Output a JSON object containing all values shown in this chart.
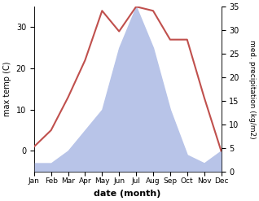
{
  "months": [
    "Jan",
    "Feb",
    "Mar",
    "Apr",
    "May",
    "Jun",
    "Jul",
    "Aug",
    "Sep",
    "Oct",
    "Nov",
    "Dec"
  ],
  "month_indices": [
    1,
    2,
    3,
    4,
    5,
    6,
    7,
    8,
    9,
    10,
    11,
    12
  ],
  "temperature": [
    1,
    5,
    13,
    22,
    34,
    29,
    35,
    34,
    27,
    27,
    13,
    0
  ],
  "precipitation_left_scale": [
    -3,
    -3,
    0,
    5,
    10,
    25,
    35,
    25,
    10,
    -1,
    -3,
    0
  ],
  "precipitation_right_scale": [
    0,
    0,
    2,
    7,
    12,
    27,
    35,
    27,
    12,
    1,
    0,
    2
  ],
  "temp_color": "#c0504d",
  "precip_fill_color": "#b8c4e8",
  "ylabel_left": "max temp (C)",
  "ylabel_right": "med. precipitation (kg/m2)",
  "xlabel": "date (month)",
  "ylim_left": [
    -5,
    35
  ],
  "ylim_right": [
    0,
    35
  ],
  "left_yticks": [
    0,
    10,
    20,
    30
  ],
  "right_yticks": [
    0,
    5,
    10,
    15,
    20,
    25,
    30,
    35
  ],
  "temp_linewidth": 1.5,
  "background_color": "#ffffff"
}
